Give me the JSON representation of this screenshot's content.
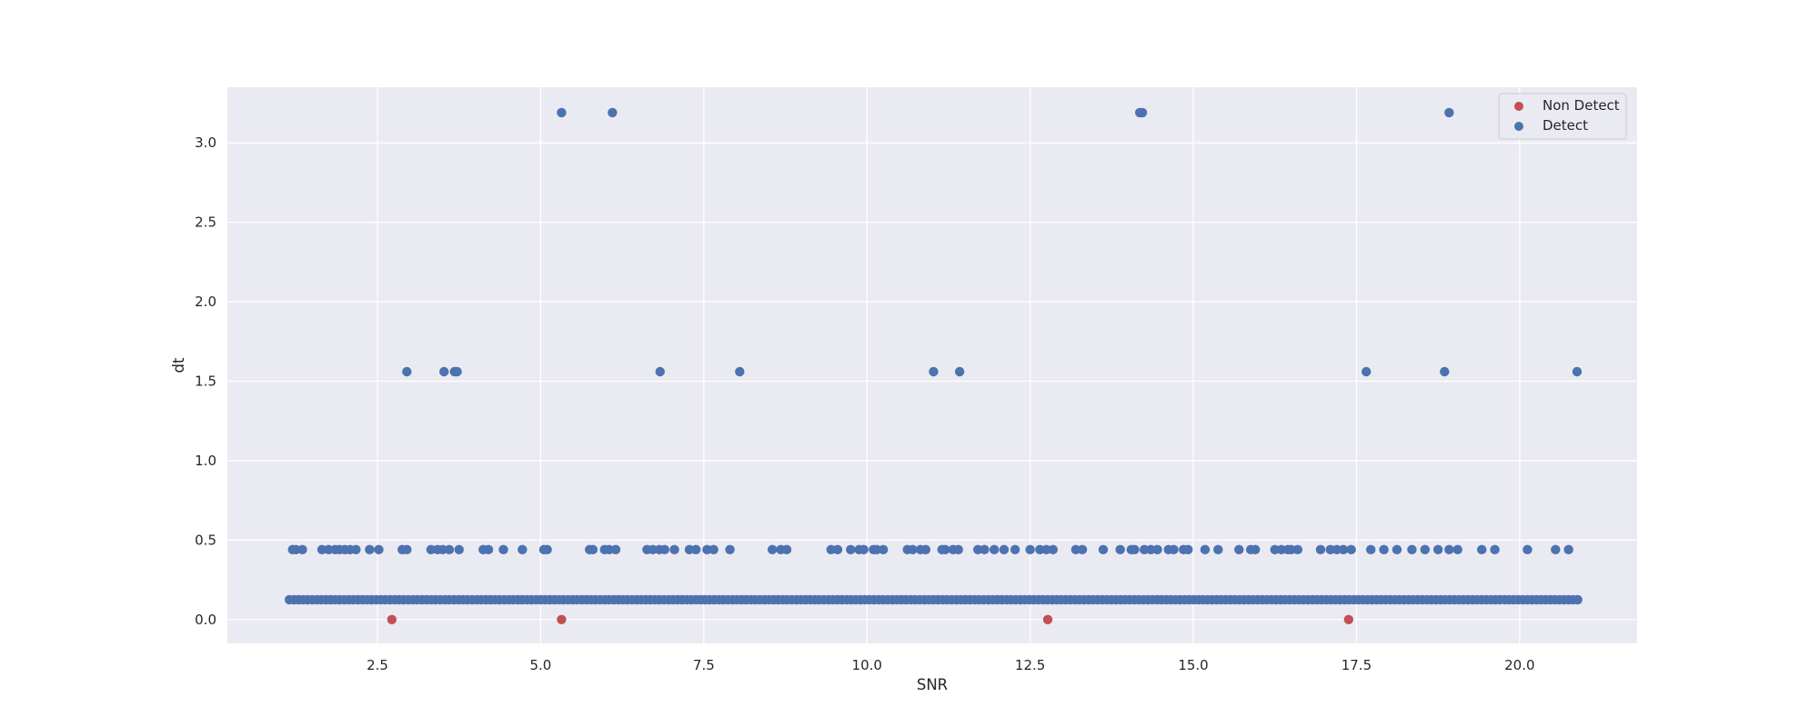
{
  "chart_data": {
    "type": "scatter",
    "title": "",
    "xlabel": "SNR",
    "ylabel": "dt",
    "xlim": [
      0.2,
      21.8
    ],
    "ylim": [
      -0.15,
      3.35
    ],
    "xticks": [
      2.5,
      5.0,
      7.5,
      10.0,
      12.5,
      15.0,
      17.5,
      20.0
    ],
    "xtick_labels": [
      "2.5",
      "5.0",
      "7.5",
      "10.0",
      "12.5",
      "15.0",
      "17.5",
      "20.0"
    ],
    "yticks": [
      0.0,
      0.5,
      1.0,
      1.5,
      2.0,
      2.5,
      3.0
    ],
    "ytick_labels": [
      "0.0",
      "0.5",
      "1.0",
      "1.5",
      "2.0",
      "2.5",
      "3.0"
    ],
    "grid": true,
    "legend_position": "top-right",
    "series": [
      {
        "name": "Non Detect",
        "color": "#c44e52",
        "x": [
          2.72,
          5.32,
          12.77,
          17.38
        ],
        "y": [
          0.0,
          0.0,
          0.0,
          0.0
        ]
      },
      {
        "name": "Detect",
        "color": "#4c72b0",
        "low_band": {
          "y": 0.125,
          "x_start": 1.15,
          "x_end": 20.9,
          "step": 0.07
        },
        "x": [
          1.2,
          1.25,
          1.35,
          1.65,
          1.75,
          1.85,
          1.92,
          2.0,
          2.08,
          2.17,
          2.38,
          2.52,
          2.88,
          2.95,
          3.32,
          3.42,
          3.5,
          3.6,
          3.75,
          4.12,
          4.2,
          4.43,
          4.72,
          5.05,
          5.1,
          5.75,
          5.8,
          5.98,
          6.05,
          6.15,
          6.63,
          6.72,
          6.82,
          6.9,
          7.05,
          7.28,
          7.38,
          7.55,
          7.65,
          7.9,
          8.55,
          8.68,
          8.77,
          9.45,
          9.55,
          9.75,
          9.88,
          9.95,
          10.1,
          10.15,
          10.25,
          10.62,
          10.7,
          10.82,
          10.9,
          11.15,
          11.2,
          11.32,
          11.4,
          11.7,
          11.8,
          11.95,
          12.1,
          12.27,
          12.5,
          12.65,
          12.75,
          12.85,
          13.2,
          13.3,
          13.62,
          13.88,
          14.05,
          14.1,
          14.25,
          14.35,
          14.45,
          14.62,
          14.7,
          14.85,
          14.92,
          15.18,
          15.38,
          15.7,
          15.88,
          15.95,
          16.25,
          16.35,
          16.45,
          16.5,
          16.6,
          16.95,
          17.1,
          17.2,
          17.3,
          17.42,
          17.72,
          17.92,
          18.12,
          18.35,
          18.55,
          18.75,
          18.92,
          19.05,
          19.42,
          19.62,
          20.12,
          20.55,
          20.75,
          2.95,
          3.52,
          3.68,
          3.72,
          6.83,
          8.05,
          11.02,
          11.42,
          17.65,
          18.85,
          20.88,
          5.32,
          6.1,
          14.18,
          14.22,
          18.92
        ],
        "y": [
          0.44,
          0.44,
          0.44,
          0.44,
          0.44,
          0.44,
          0.44,
          0.44,
          0.44,
          0.44,
          0.44,
          0.44,
          0.44,
          0.44,
          0.44,
          0.44,
          0.44,
          0.44,
          0.44,
          0.44,
          0.44,
          0.44,
          0.44,
          0.44,
          0.44,
          0.44,
          0.44,
          0.44,
          0.44,
          0.44,
          0.44,
          0.44,
          0.44,
          0.44,
          0.44,
          0.44,
          0.44,
          0.44,
          0.44,
          0.44,
          0.44,
          0.44,
          0.44,
          0.44,
          0.44,
          0.44,
          0.44,
          0.44,
          0.44,
          0.44,
          0.44,
          0.44,
          0.44,
          0.44,
          0.44,
          0.44,
          0.44,
          0.44,
          0.44,
          0.44,
          0.44,
          0.44,
          0.44,
          0.44,
          0.44,
          0.44,
          0.44,
          0.44,
          0.44,
          0.44,
          0.44,
          0.44,
          0.44,
          0.44,
          0.44,
          0.44,
          0.44,
          0.44,
          0.44,
          0.44,
          0.44,
          0.44,
          0.44,
          0.44,
          0.44,
          0.44,
          0.44,
          0.44,
          0.44,
          0.44,
          0.44,
          0.44,
          0.44,
          0.44,
          0.44,
          0.44,
          0.44,
          0.44,
          0.44,
          0.44,
          0.44,
          0.44,
          0.44,
          0.44,
          0.44,
          0.44,
          0.44,
          0.44,
          0.44,
          1.56,
          1.56,
          1.56,
          1.56,
          1.56,
          1.56,
          1.56,
          1.56,
          1.56,
          1.56,
          1.56,
          3.19,
          3.19,
          3.19,
          3.19,
          3.19
        ]
      }
    ]
  }
}
